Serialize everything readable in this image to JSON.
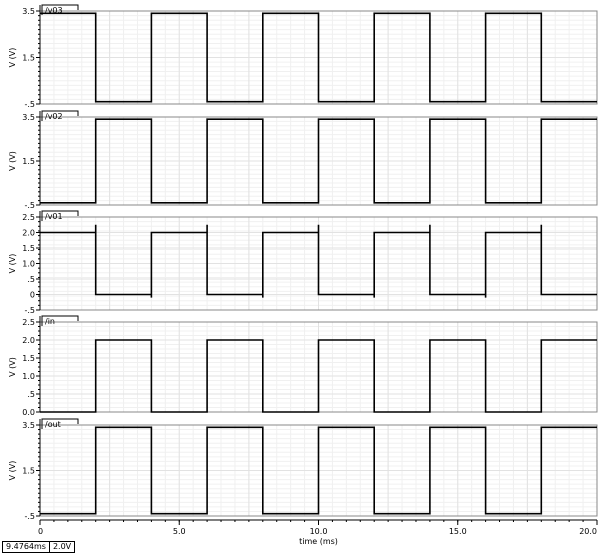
{
  "readout": {
    "time": "9.4764ms",
    "value": "2.0V"
  },
  "chart_data": {
    "type": "line",
    "xlabel": "time (ms)",
    "xlim": [
      0,
      20.0
    ],
    "xticks": [
      0,
      5.0,
      10.0,
      15.0,
      20.0
    ],
    "xtick_labels": [
      "0",
      "5.0",
      "10.0",
      "15.0",
      "20.0"
    ],
    "colors": {
      "trace": "#000000",
      "grid": "#e2e2e2",
      "grid_minor": "#f0f0f0",
      "axis": "#000000"
    },
    "panels": [
      {
        "name": "/v03",
        "ylabel": "V (V)",
        "ylim": [
          -0.5,
          3.5
        ],
        "yticks": [
          -0.5,
          1.5,
          3.5
        ],
        "ytick_labels": [
          "-.5",
          "1.5",
          "3.5"
        ],
        "x": [
          0,
          2,
          2,
          4,
          4,
          6,
          6,
          8,
          8,
          10,
          10,
          12,
          12,
          14,
          14,
          16,
          16,
          18,
          18,
          20
        ],
        "y": [
          3.4,
          3.4,
          -0.4,
          -0.4,
          3.4,
          3.4,
          -0.4,
          -0.4,
          3.4,
          3.4,
          -0.4,
          -0.4,
          3.4,
          3.4,
          -0.4,
          -0.4,
          3.4,
          3.4,
          -0.4,
          -0.4
        ]
      },
      {
        "name": "/v02",
        "ylabel": "V (V)",
        "ylim": [
          -0.5,
          3.5
        ],
        "yticks": [
          -0.5,
          1.5,
          3.5
        ],
        "ytick_labels": [
          "-.5",
          "1.5",
          "3.5"
        ],
        "x": [
          0,
          2,
          2,
          4,
          4,
          6,
          6,
          8,
          8,
          10,
          10,
          12,
          12,
          14,
          14,
          16,
          16,
          18,
          18,
          20
        ],
        "y": [
          -0.4,
          -0.4,
          3.4,
          3.4,
          -0.4,
          -0.4,
          3.4,
          3.4,
          -0.4,
          -0.4,
          3.4,
          3.4,
          -0.4,
          -0.4,
          3.4,
          3.4,
          -0.4,
          -0.4,
          3.4,
          3.4
        ]
      },
      {
        "name": "/v01",
        "ylabel": "V (V)",
        "ylim": [
          -0.5,
          2.5
        ],
        "yticks": [
          -0.5,
          0,
          0.5,
          1.0,
          1.5,
          2.0,
          2.5
        ],
        "ytick_labels": [
          "-.5",
          "0",
          ".5",
          "1.0",
          "1.5",
          "2.0",
          "2.5"
        ],
        "x": [
          0,
          2,
          2,
          2,
          4,
          4,
          4,
          6,
          6,
          6,
          8,
          8,
          8,
          10,
          10,
          10,
          12,
          12,
          12,
          14,
          14,
          14,
          16,
          16,
          16,
          18,
          18,
          18,
          20
        ],
        "y": [
          2.0,
          2.0,
          2.25,
          0.0,
          0.0,
          -0.1,
          2.0,
          2.0,
          2.25,
          0.0,
          0.0,
          -0.1,
          2.0,
          2.0,
          2.25,
          0.0,
          0.0,
          -0.1,
          2.0,
          2.0,
          2.25,
          0.0,
          0.0,
          -0.1,
          2.0,
          2.0,
          2.25,
          0.0,
          0.0
        ]
      },
      {
        "name": "/in",
        "ylabel": "V (V)",
        "ylim": [
          0.0,
          2.5
        ],
        "yticks": [
          0.0,
          0.5,
          1.0,
          1.5,
          2.0,
          2.5
        ],
        "ytick_labels": [
          "0.0",
          ".5",
          "1.0",
          "1.5",
          "2.0",
          "2.5"
        ],
        "x": [
          0,
          2,
          2,
          4,
          4,
          6,
          6,
          8,
          8,
          10,
          10,
          12,
          12,
          14,
          14,
          16,
          16,
          18,
          18,
          20
        ],
        "y": [
          0.0,
          0.0,
          2.0,
          2.0,
          0.0,
          0.0,
          2.0,
          2.0,
          0.0,
          0.0,
          2.0,
          2.0,
          0.0,
          0.0,
          2.0,
          2.0,
          0.0,
          0.0,
          2.0,
          2.0
        ]
      },
      {
        "name": "/out",
        "ylabel": "V (V)",
        "ylim": [
          -0.5,
          3.5
        ],
        "yticks": [
          -0.5,
          1.5,
          3.5
        ],
        "ytick_labels": [
          "-.5",
          "1.5",
          "3.5"
        ],
        "x": [
          0,
          2,
          2,
          4,
          4,
          6,
          6,
          8,
          8,
          10,
          10,
          12,
          12,
          14,
          14,
          16,
          16,
          18,
          18,
          20
        ],
        "y": [
          -0.4,
          -0.4,
          3.4,
          3.4,
          -0.4,
          -0.4,
          3.4,
          3.4,
          -0.4,
          -0.4,
          3.4,
          3.4,
          -0.4,
          -0.4,
          3.4,
          3.4,
          -0.4,
          -0.4,
          3.4,
          3.4
        ]
      }
    ]
  }
}
